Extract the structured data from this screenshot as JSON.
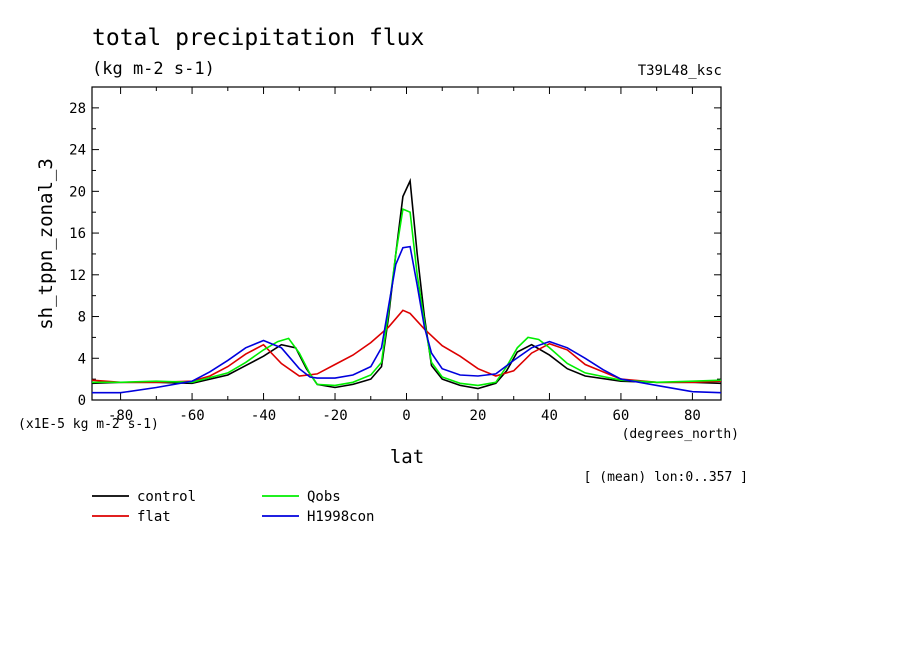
{
  "header": {
    "title": "total precipitation flux",
    "units": "(kg m-2 s-1)",
    "run_tag": "T39L48_ksc"
  },
  "axes": {
    "ylabel": "sh_tppn_zonal_3",
    "xlabel": "lat",
    "x_units_note": "(degrees_north)",
    "y_scale_note": "(x1E-5 kg m-2 s-1)",
    "mean_note": "[ (mean) lon:0..357 ]"
  },
  "chart_data": {
    "type": "line",
    "title": "total precipitation flux",
    "xlabel": "lat",
    "ylabel": "sh_tppn_zonal_3",
    "xlim": [
      -88,
      88
    ],
    "ylim": [
      0,
      30
    ],
    "x_ticks": [
      -80,
      -60,
      -40,
      -20,
      0,
      20,
      40,
      60,
      80
    ],
    "y_ticks": [
      0,
      4,
      8,
      12,
      16,
      20,
      24,
      28
    ],
    "legend_position": "bottom-left",
    "series": [
      {
        "name": "control",
        "color": "#000000",
        "x": [
          -88,
          -80,
          -70,
          -60,
          -50,
          -45,
          -40,
          -35,
          -31,
          -28,
          -25,
          -20,
          -15,
          -10,
          -7,
          -5,
          -3,
          -1,
          1,
          3,
          5,
          7,
          10,
          15,
          20,
          25,
          28,
          31,
          35,
          40,
          45,
          50,
          60,
          70,
          80,
          88
        ],
        "y": [
          1.6,
          1.7,
          1.7,
          1.6,
          2.4,
          3.3,
          4.2,
          5.3,
          5.0,
          3.0,
          1.5,
          1.2,
          1.5,
          2.0,
          3.2,
          8.0,
          14.0,
          19.5,
          21.0,
          14.0,
          8.0,
          3.3,
          2.0,
          1.4,
          1.1,
          1.6,
          2.8,
          4.6,
          5.3,
          4.3,
          3.0,
          2.3,
          1.8,
          1.7,
          1.7,
          1.6
        ]
      },
      {
        "name": "flat",
        "color": "#dd0000",
        "x": [
          -88,
          -80,
          -70,
          -60,
          -55,
          -50,
          -45,
          -40,
          -35,
          -30,
          -25,
          -20,
          -15,
          -10,
          -5,
          -1,
          1,
          5,
          10,
          15,
          20,
          25,
          30,
          35,
          40,
          45,
          50,
          60,
          70,
          80,
          88
        ],
        "y": [
          1.9,
          1.7,
          1.7,
          1.8,
          2.3,
          3.2,
          4.4,
          5.3,
          3.5,
          2.3,
          2.5,
          3.4,
          4.3,
          5.5,
          7.0,
          8.6,
          8.3,
          6.8,
          5.2,
          4.2,
          3.0,
          2.3,
          2.8,
          4.5,
          5.4,
          4.8,
          3.4,
          2.0,
          1.7,
          1.7,
          1.8
        ]
      },
      {
        "name": "Qobs",
        "color": "#00ee00",
        "x": [
          -88,
          -80,
          -70,
          -60,
          -50,
          -45,
          -40,
          -36,
          -33,
          -30,
          -27,
          -25,
          -20,
          -15,
          -10,
          -7,
          -5,
          -3,
          -1,
          1,
          3,
          5,
          7,
          10,
          15,
          20,
          25,
          28,
          31,
          34,
          37,
          40,
          45,
          50,
          60,
          70,
          80,
          88
        ],
        "y": [
          1.7,
          1.7,
          1.8,
          1.7,
          2.6,
          3.6,
          4.8,
          5.6,
          5.9,
          4.5,
          2.5,
          1.5,
          1.4,
          1.7,
          2.4,
          3.6,
          8.5,
          14.0,
          18.3,
          18.0,
          12.0,
          7.5,
          3.6,
          2.2,
          1.6,
          1.4,
          1.7,
          3.2,
          5.0,
          6.0,
          5.8,
          5.0,
          3.5,
          2.6,
          1.9,
          1.7,
          1.8,
          1.9
        ]
      },
      {
        "name": "H1998con",
        "color": "#0000dd",
        "x": [
          -88,
          -80,
          -70,
          -60,
          -55,
          -50,
          -45,
          -40,
          -35,
          -30,
          -27,
          -25,
          -20,
          -15,
          -10,
          -7,
          -5,
          -3,
          -1,
          1,
          3,
          5,
          7,
          10,
          15,
          20,
          25,
          30,
          35,
          40,
          45,
          50,
          55,
          60,
          70,
          80,
          88
        ],
        "y": [
          0.7,
          0.7,
          1.2,
          1.8,
          2.7,
          3.8,
          5.0,
          5.7,
          5.0,
          3.0,
          2.2,
          2.1,
          2.1,
          2.4,
          3.2,
          5.0,
          9.0,
          13.0,
          14.6,
          14.7,
          11.0,
          7.0,
          4.5,
          3.0,
          2.4,
          2.3,
          2.5,
          3.8,
          5.0,
          5.6,
          5.0,
          4.0,
          2.9,
          2.0,
          1.4,
          0.8,
          0.7
        ]
      }
    ]
  }
}
